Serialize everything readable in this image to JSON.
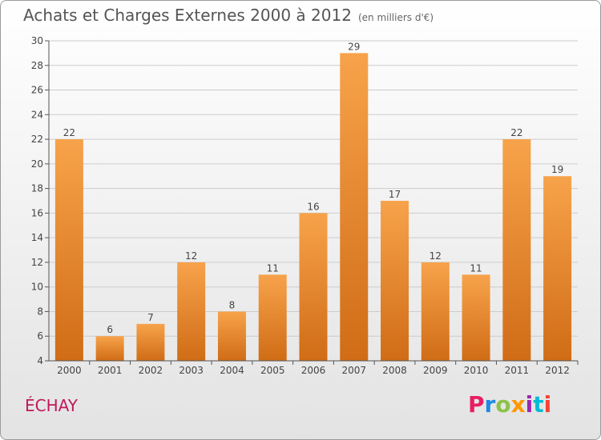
{
  "header": {
    "title": "Achats et Charges Externes 2000 à 2012",
    "subtitle": "(en milliers d'€)"
  },
  "footer": {
    "town": "ÉCHAY",
    "brand": "Proxiti"
  },
  "colors": {
    "bar_top": "#f7a34b",
    "bar_bottom": "#d06c16",
    "grid": "#cccccc",
    "axis": "#555555"
  },
  "chart_data": {
    "type": "bar",
    "title": "Achats et Charges Externes 2000 à 2012",
    "subtitle": "(en milliers d'€)",
    "categories": [
      "2000",
      "2001",
      "2002",
      "2003",
      "2004",
      "2005",
      "2006",
      "2007",
      "2008",
      "2009",
      "2010",
      "2011",
      "2012"
    ],
    "values": [
      22,
      6,
      7,
      12,
      8,
      11,
      16,
      29,
      17,
      12,
      11,
      22,
      19
    ],
    "ylim": [
      4,
      30
    ],
    "yticks": [
      4,
      6,
      8,
      10,
      12,
      14,
      16,
      18,
      20,
      22,
      24,
      26,
      28,
      30
    ],
    "grid": true,
    "data_labels": true
  }
}
